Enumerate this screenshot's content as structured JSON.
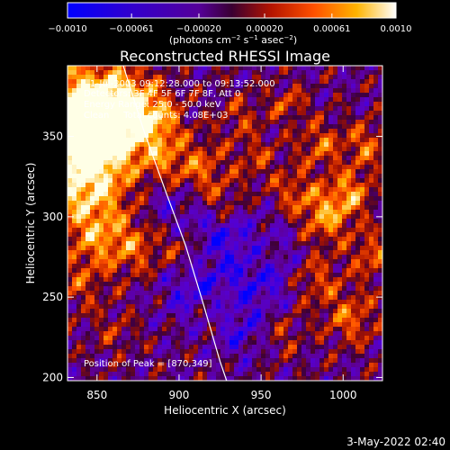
{
  "colorbar": {
    "ticks": [
      {
        "value": -0.001,
        "label": "−0.0010"
      },
      {
        "value": -0.00061,
        "label": "−0.00061"
      },
      {
        "value": -0.0002,
        "label": "−0.00020"
      },
      {
        "value": 0.0002,
        "label": "0.00020"
      },
      {
        "value": 0.00061,
        "label": "0.00061"
      },
      {
        "value": 0.001,
        "label": "0.0010"
      }
    ],
    "range": [
      -0.001,
      0.001
    ],
    "units_base": "(photons cm",
    "units_e1": "−2",
    "units_m1": " s",
    "units_e2": "−1",
    "units_m2": " asec",
    "units_e3": "−2",
    "units_end": ")"
  },
  "chart_data": {
    "type": "heatmap",
    "title": "Reconstructed RHESSI Image",
    "xlabel": "Heliocentric X (arcsec)",
    "ylabel": "Heliocentric Y (arcsec)",
    "xlim": [
      832,
      1024
    ],
    "ylim": [
      198,
      394
    ],
    "xticks": [
      850,
      900,
      950,
      1000
    ],
    "yticks": [
      200,
      250,
      300,
      350
    ],
    "annotations": [
      "1-Jul-2003 09:12:28.000 to 09:13:52.000",
      "Detectors: 3F 4F 5F 6F 7F 8F, Att 0",
      "Energy Range: 25.0 - 50.0 keV",
      "Clean     Total counts: 4.08E+03",
      "Position of Peak = [870,349]"
    ],
    "peak": {
      "x": 870,
      "y": 349
    },
    "limb_line": [
      [
        866,
        394
      ],
      [
        878,
        355
      ],
      [
        891,
        318
      ],
      [
        904,
        282
      ],
      [
        915,
        245
      ],
      [
        925,
        210
      ],
      [
        929,
        198
      ]
    ]
  },
  "footer": {
    "timestamp": "3-May-2022 02:40"
  }
}
